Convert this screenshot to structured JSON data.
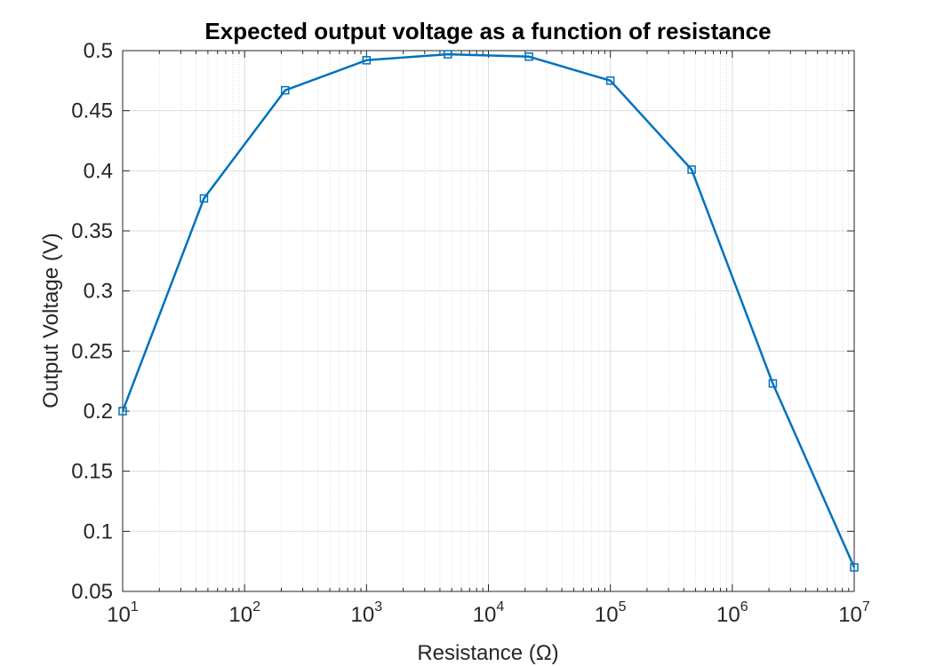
{
  "chart_data": {
    "type": "line",
    "title": "Expected output voltage as a function of resistance",
    "xlabel": "Resistance (Ω)",
    "ylabel": "Output Voltage (V)",
    "x_scale": "log",
    "xlim": [
      10,
      10000000
    ],
    "ylim": [
      0.05,
      0.5
    ],
    "x_ticks": [
      {
        "base": "10",
        "exp": "1",
        "value": 10
      },
      {
        "base": "10",
        "exp": "2",
        "value": 100
      },
      {
        "base": "10",
        "exp": "3",
        "value": 1000
      },
      {
        "base": "10",
        "exp": "4",
        "value": 10000
      },
      {
        "base": "10",
        "exp": "5",
        "value": 100000
      },
      {
        "base": "10",
        "exp": "6",
        "value": 1000000
      },
      {
        "base": "10",
        "exp": "7",
        "value": 10000000
      }
    ],
    "y_ticks": [
      "0.05",
      "0.1",
      "0.15",
      "0.2",
      "0.25",
      "0.3",
      "0.35",
      "0.4",
      "0.45",
      "0.5"
    ],
    "grid": true,
    "minor_grid": true,
    "series": [
      {
        "color": "#0072BD",
        "marker": "square",
        "x": [
          10,
          46.4,
          215,
          1000,
          4640,
          21500,
          100000,
          464000,
          2150000,
          10000000
        ],
        "y": [
          0.2,
          0.377,
          0.467,
          0.492,
          0.497,
          0.495,
          0.475,
          0.401,
          0.223,
          0.07
        ]
      }
    ]
  }
}
